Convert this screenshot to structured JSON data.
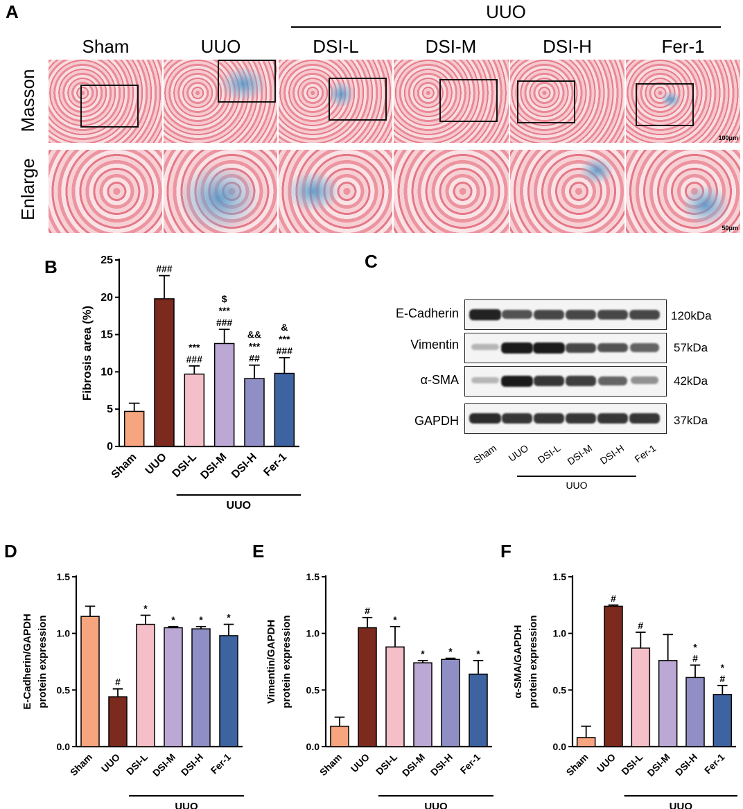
{
  "panel_a": {
    "letter": "A",
    "group_label": "UUO",
    "columns": [
      "Sham",
      "UUO",
      "DSI-L",
      "DSI-M",
      "DSI-H",
      "Fer-1"
    ],
    "rows": [
      "Masson",
      "Enlarge"
    ],
    "scale_masson": "100μm",
    "scale_enlarge": "50μm"
  },
  "panel_c": {
    "letter": "C",
    "proteins": [
      "E-Cadherin",
      "Vimentin",
      "α-SMA",
      "GAPDH"
    ],
    "kda": [
      "120kDa",
      "57kDa",
      "42kDa",
      "37kDa"
    ],
    "lanes": [
      "Sham",
      "UUO",
      "DSI-L",
      "DSI-M",
      "DSI-H",
      "Fer-1"
    ],
    "group_label": "UUO",
    "band_intensity": [
      [
        0.95,
        0.7,
        0.75,
        0.75,
        0.75,
        0.75
      ],
      [
        0.15,
        1.0,
        1.0,
        0.75,
        0.7,
        0.6
      ],
      [
        0.15,
        1.0,
        0.85,
        0.8,
        0.6,
        0.35
      ],
      [
        0.9,
        0.85,
        0.85,
        0.85,
        0.85,
        0.85
      ]
    ]
  },
  "colors": {
    "Sham": "#f7a57e",
    "UUO": "#7b2a1d",
    "DSI-L": "#f4bfc8",
    "DSI-M": "#bba8d4",
    "DSI-H": "#8f8fc6",
    "Fer-1": "#3e63a1"
  },
  "chart_data": [
    {
      "panel": "B",
      "type": "bar",
      "categories": [
        "Sham",
        "UUO",
        "DSI-L",
        "DSI-M",
        "DSI-H",
        "Fer-1"
      ],
      "values": [
        4.7,
        19.8,
        9.7,
        13.8,
        9.1,
        9.8
      ],
      "errors": [
        1.1,
        3.1,
        1.1,
        1.9,
        1.8,
        2.1
      ],
      "annotations": [
        [],
        [
          "###"
        ],
        [
          "***",
          "###"
        ],
        [
          "$",
          "***",
          "###"
        ],
        [
          "&&",
          "***",
          "##"
        ],
        [
          "&",
          "***",
          "###"
        ]
      ],
      "group_label": "UUO",
      "ylabel": "Fibrosis area (%)",
      "ylim": [
        0,
        25
      ],
      "yticks": [
        0,
        5,
        10,
        15,
        20,
        25
      ]
    },
    {
      "panel": "D",
      "type": "bar",
      "categories": [
        "Sham",
        "UUO",
        "DSI-L",
        "DSI-M",
        "DSI-H",
        "Fer-1"
      ],
      "values": [
        1.15,
        0.44,
        1.08,
        1.05,
        1.04,
        0.98
      ],
      "errors": [
        0.09,
        0.07,
        0.08,
        0.01,
        0.02,
        0.1
      ],
      "annotations": [
        [],
        [
          "#"
        ],
        [
          "*"
        ],
        [
          "*"
        ],
        [
          "*"
        ],
        [
          "*"
        ]
      ],
      "group_label": "UUO",
      "ylabel": [
        "E-Cadherin/GAPDH",
        "protein expression"
      ],
      "ylim": [
        0,
        1.5
      ],
      "yticks": [
        0.0,
        0.5,
        1.0,
        1.5
      ]
    },
    {
      "panel": "E",
      "type": "bar",
      "categories": [
        "Sham",
        "UUO",
        "DSI-L",
        "DSI-M",
        "DSI-H",
        "Fer-1"
      ],
      "values": [
        0.18,
        1.05,
        0.88,
        0.74,
        0.77,
        0.64
      ],
      "errors": [
        0.08,
        0.09,
        0.18,
        0.02,
        0.01,
        0.12
      ],
      "annotations": [
        [],
        [
          "#"
        ],
        [
          "*"
        ],
        [
          "*"
        ],
        [
          "*"
        ],
        [
          "*"
        ]
      ],
      "group_label": "UUO",
      "ylabel": [
        "Vimentin/GAPDH",
        "protein expression"
      ],
      "ylim": [
        0,
        1.5
      ],
      "yticks": [
        0.0,
        0.5,
        1.0,
        1.5
      ]
    },
    {
      "panel": "F",
      "type": "bar",
      "categories": [
        "Sham",
        "UUO",
        "DSI-L",
        "DSI-M",
        "DSI-H",
        "Fer-1"
      ],
      "values": [
        0.08,
        1.24,
        0.87,
        0.76,
        0.61,
        0.46
      ],
      "errors": [
        0.1,
        0.01,
        0.14,
        0.23,
        0.11,
        0.08
      ],
      "annotations": [
        [],
        [
          "#"
        ],
        [
          "#"
        ],
        [],
        [
          "*",
          "#"
        ],
        [
          "*",
          "#"
        ]
      ],
      "group_label": "UUO",
      "ylabel": [
        "α-SMA/GAPDH",
        "protein expression"
      ],
      "ylim": [
        0,
        1.5
      ],
      "yticks": [
        0.0,
        0.5,
        1.0,
        1.5
      ]
    }
  ]
}
